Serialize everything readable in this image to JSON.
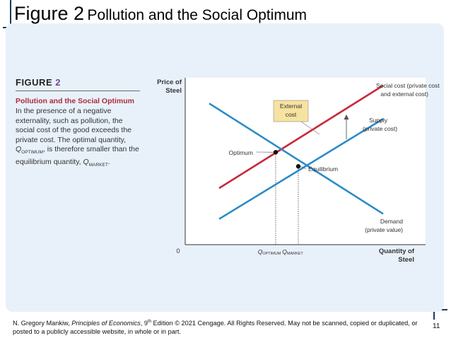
{
  "slide": {
    "title_main": "Figure 2",
    "title_rest": "Pollution and the Social Optimum",
    "page_number": "11"
  },
  "figure": {
    "label_word": "FIGURE",
    "label_number": "2",
    "caption_title": "Pollution and the Social Optimum",
    "caption_text_1": "In the presence of a negative externality, such as pollution, the social cost of the good exceeds the private cost. The optimal quantity, ",
    "caption_q_opt": "Q",
    "caption_q_opt_sub": "OPTIMUM",
    "caption_text_2": ", is therefore smaller than the equilibrium quantity, ",
    "caption_q_mkt": "Q",
    "caption_q_mkt_sub": "MARKET",
    "caption_text_3": "."
  },
  "footer": {
    "author": "N. Gregory Mankiw, ",
    "book": "Principles of Economics",
    "edition_pre": ", 9",
    "edition_sup": "th",
    "rest": " Edition © 2021 Cengage. All Rights Reserved. May not be scanned, copied or duplicated, or posted to a publicly accessible website, in whole or in part."
  },
  "chart_data": {
    "type": "line",
    "title": "",
    "ylabel_1": "Price of",
    "ylabel_2": "Steel",
    "xlabel_1": "Quantity of",
    "xlabel_2": "Steel",
    "origin_label": "0",
    "x_tick_opt": "Q",
    "x_tick_opt_sub": "OPTIMUM",
    "x_tick_mkt": "Q",
    "x_tick_mkt_sub": "MARKET",
    "grid": false,
    "series": [
      {
        "name": "Social cost (private cost and external cost)",
        "label_1": "Social cost (private cost",
        "label_2": "and external cost)",
        "color": "#c8283a",
        "x": [
          1.2,
          7.0
        ],
        "y": [
          2.2,
          6.2
        ]
      },
      {
        "name": "Supply (private cost)",
        "label_1": "Supply",
        "label_2": "(private cost)",
        "color": "#2a8ac8",
        "x": [
          1.2,
          7.0
        ],
        "y": [
          1.0,
          4.9
        ]
      },
      {
        "name": "Demand (private value)",
        "label_1": "Demand",
        "label_2": "(private value)",
        "color": "#2a8ac8",
        "x": [
          0.85,
          7.0
        ],
        "y": [
          5.5,
          1.2
        ]
      }
    ],
    "points": [
      {
        "name": "Optimum",
        "x": 3.2,
        "y": 3.6
      },
      {
        "name": "Equilibrium",
        "x": 4.0,
        "y": 3.05
      }
    ],
    "annotations": [
      {
        "text_1": "External",
        "text_2": "cost",
        "fill": "#f6e3a0"
      }
    ],
    "xlim": [
      0,
      8.5
    ],
    "ylim": [
      0,
      6.5
    ]
  }
}
